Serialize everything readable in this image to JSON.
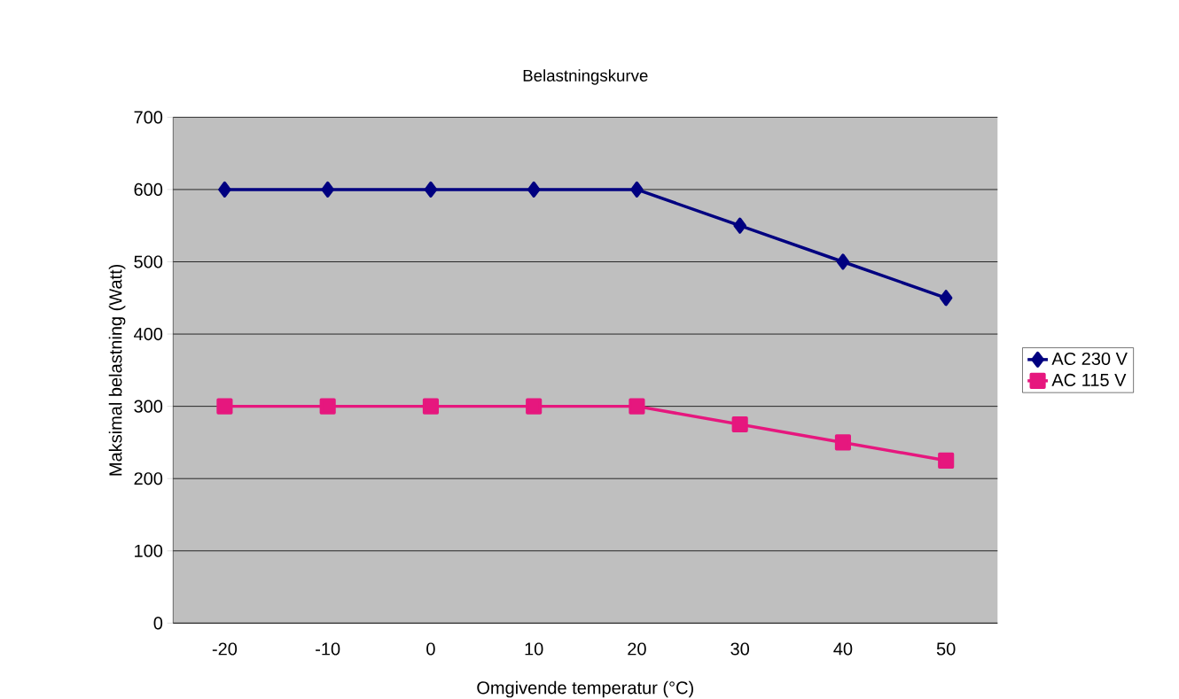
{
  "chart_data": {
    "type": "line",
    "title": "Belastningskurve",
    "xlabel": "Omgivende temperatur (°C)",
    "ylabel": "Maksimal belastning (Watt)",
    "categories": [
      "-20",
      "-10",
      "0",
      "10",
      "20",
      "30",
      "40",
      "50"
    ],
    "series": [
      {
        "name": "AC 230 V",
        "color": "#000080",
        "marker": "diamond",
        "values": [
          600,
          600,
          600,
          600,
          600,
          550,
          500,
          450
        ]
      },
      {
        "name": "AC 115 V",
        "color": "#e6177e",
        "marker": "square",
        "values": [
          300,
          300,
          300,
          300,
          300,
          275,
          250,
          225
        ]
      }
    ],
    "ylim": [
      0,
      700
    ],
    "yticks": [
      0,
      100,
      200,
      300,
      400,
      500,
      600,
      700
    ],
    "grid": "y",
    "legend": "right"
  }
}
